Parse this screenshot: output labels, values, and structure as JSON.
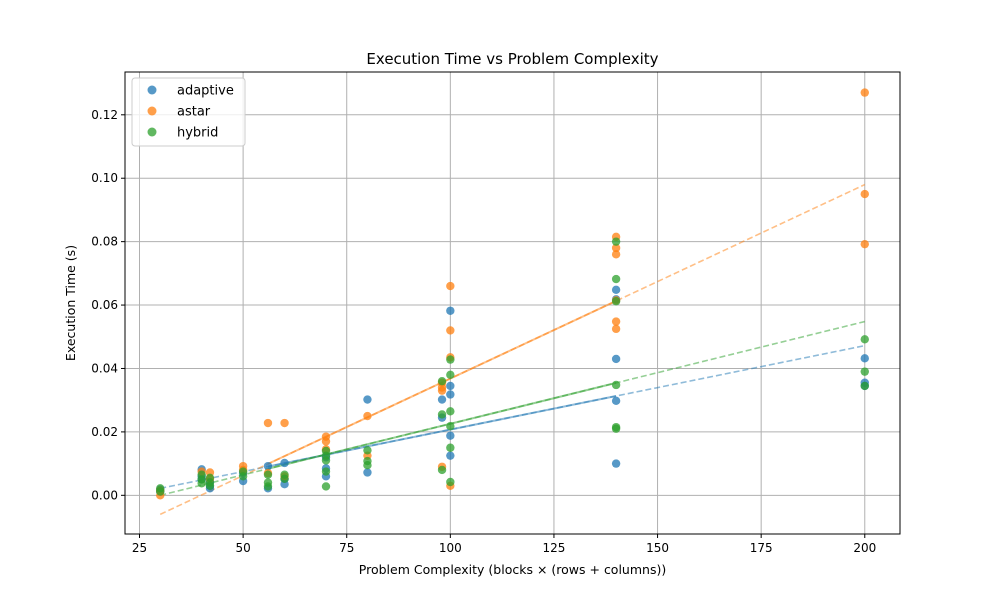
{
  "chart_data": {
    "type": "scatter",
    "title": "Execution Time vs Problem Complexity",
    "xlabel": "Problem Complexity (blocks × (rows + columns))",
    "ylabel": "Execution Time (s)",
    "xlim": [
      21.5,
      208.5
    ],
    "ylim": [
      -0.0122,
      0.1335
    ],
    "xticks": [
      25,
      50,
      75,
      100,
      125,
      150,
      175,
      200
    ],
    "yticks": [
      0.0,
      0.02,
      0.04,
      0.06,
      0.08,
      0.1,
      0.12
    ],
    "xtick_labels": [
      "25",
      "50",
      "75",
      "100",
      "125",
      "150",
      "175",
      "200"
    ],
    "ytick_labels": [
      "0.00",
      "0.02",
      "0.04",
      "0.06",
      "0.08",
      "0.10",
      "0.12"
    ],
    "grid": true,
    "legend_position": "top-left",
    "series": [
      {
        "name": "adaptive",
        "color": "#1f77b4",
        "points": [
          [
            30,
            0.0018
          ],
          [
            30,
            0.0012
          ],
          [
            40,
            0.0082
          ],
          [
            40,
            0.006
          ],
          [
            40,
            0.005
          ],
          [
            42,
            0.0042
          ],
          [
            42,
            0.003
          ],
          [
            42,
            0.0022
          ],
          [
            50,
            0.007
          ],
          [
            50,
            0.0045
          ],
          [
            56,
            0.0092
          ],
          [
            56,
            0.0022
          ],
          [
            60,
            0.0102
          ],
          [
            60,
            0.0052
          ],
          [
            60,
            0.0035
          ],
          [
            70,
            0.012
          ],
          [
            70,
            0.0085
          ],
          [
            70,
            0.006
          ],
          [
            80,
            0.0302
          ],
          [
            80,
            0.0072
          ],
          [
            98,
            0.0302
          ],
          [
            98,
            0.0245
          ],
          [
            100,
            0.0582
          ],
          [
            100,
            0.0345
          ],
          [
            100,
            0.0318
          ],
          [
            100,
            0.0188
          ],
          [
            100,
            0.0125
          ],
          [
            140,
            0.0648
          ],
          [
            140,
            0.0618
          ],
          [
            140,
            0.043
          ],
          [
            140,
            0.0298
          ],
          [
            140,
            0.01
          ],
          [
            200,
            0.0432
          ],
          [
            200,
            0.0355
          ],
          [
            200,
            0.0345
          ]
        ],
        "trend": {
          "x": [
            30,
            200
          ],
          "y": [
            0.0022,
            0.0472
          ],
          "solid_x": [
            56,
            140
          ]
        }
      },
      {
        "name": "astar",
        "color": "#ff7f0e",
        "points": [
          [
            30,
            0.0
          ],
          [
            30,
            0.0015
          ],
          [
            40,
            0.0075
          ],
          [
            42,
            0.0072
          ],
          [
            42,
            0.0052
          ],
          [
            50,
            0.0092
          ],
          [
            50,
            0.008
          ],
          [
            56,
            0.0228
          ],
          [
            56,
            0.007
          ],
          [
            60,
            0.0228
          ],
          [
            60,
            0.006
          ],
          [
            70,
            0.0185
          ],
          [
            70,
            0.017
          ],
          [
            70,
            0.0145
          ],
          [
            80,
            0.025
          ],
          [
            80,
            0.0125
          ],
          [
            98,
            0.0355
          ],
          [
            98,
            0.034
          ],
          [
            98,
            0.033
          ],
          [
            98,
            0.009
          ],
          [
            100,
            0.066
          ],
          [
            100,
            0.052
          ],
          [
            100,
            0.0435
          ],
          [
            100,
            0.003
          ],
          [
            140,
            0.0815
          ],
          [
            140,
            0.078
          ],
          [
            140,
            0.076
          ],
          [
            140,
            0.0615
          ],
          [
            140,
            0.0548
          ],
          [
            140,
            0.0525
          ],
          [
            200,
            0.127
          ],
          [
            200,
            0.095
          ],
          [
            200,
            0.0792
          ]
        ],
        "trend": {
          "x": [
            30,
            200
          ],
          "y": [
            -0.006,
            0.098
          ],
          "solid_x": [
            56,
            140
          ]
        }
      },
      {
        "name": "hybrid",
        "color": "#2ca02c",
        "points": [
          [
            30,
            0.0022
          ],
          [
            30,
            0.0012
          ],
          [
            40,
            0.0065
          ],
          [
            40,
            0.005
          ],
          [
            40,
            0.0038
          ],
          [
            42,
            0.0055
          ],
          [
            42,
            0.004
          ],
          [
            42,
            0.003
          ],
          [
            50,
            0.0075
          ],
          [
            50,
            0.006
          ],
          [
            56,
            0.0065
          ],
          [
            56,
            0.004
          ],
          [
            56,
            0.0028
          ],
          [
            60,
            0.0065
          ],
          [
            60,
            0.0052
          ],
          [
            70,
            0.014
          ],
          [
            70,
            0.0125
          ],
          [
            70,
            0.011
          ],
          [
            70,
            0.0075
          ],
          [
            70,
            0.0028
          ],
          [
            80,
            0.0142
          ],
          [
            80,
            0.0108
          ],
          [
            80,
            0.0095
          ],
          [
            98,
            0.036
          ],
          [
            98,
            0.0255
          ],
          [
            98,
            0.008
          ],
          [
            100,
            0.0428
          ],
          [
            100,
            0.038
          ],
          [
            100,
            0.0265
          ],
          [
            100,
            0.0218
          ],
          [
            100,
            0.015
          ],
          [
            100,
            0.0042
          ],
          [
            140,
            0.08
          ],
          [
            140,
            0.0682
          ],
          [
            140,
            0.0612
          ],
          [
            140,
            0.0348
          ],
          [
            140,
            0.0215
          ],
          [
            140,
            0.021
          ],
          [
            200,
            0.0492
          ],
          [
            200,
            0.039
          ],
          [
            200,
            0.0345
          ]
        ],
        "trend": {
          "x": [
            30,
            200
          ],
          "y": [
            0.0,
            0.0548
          ],
          "solid_x": [
            56,
            140
          ]
        }
      }
    ]
  }
}
